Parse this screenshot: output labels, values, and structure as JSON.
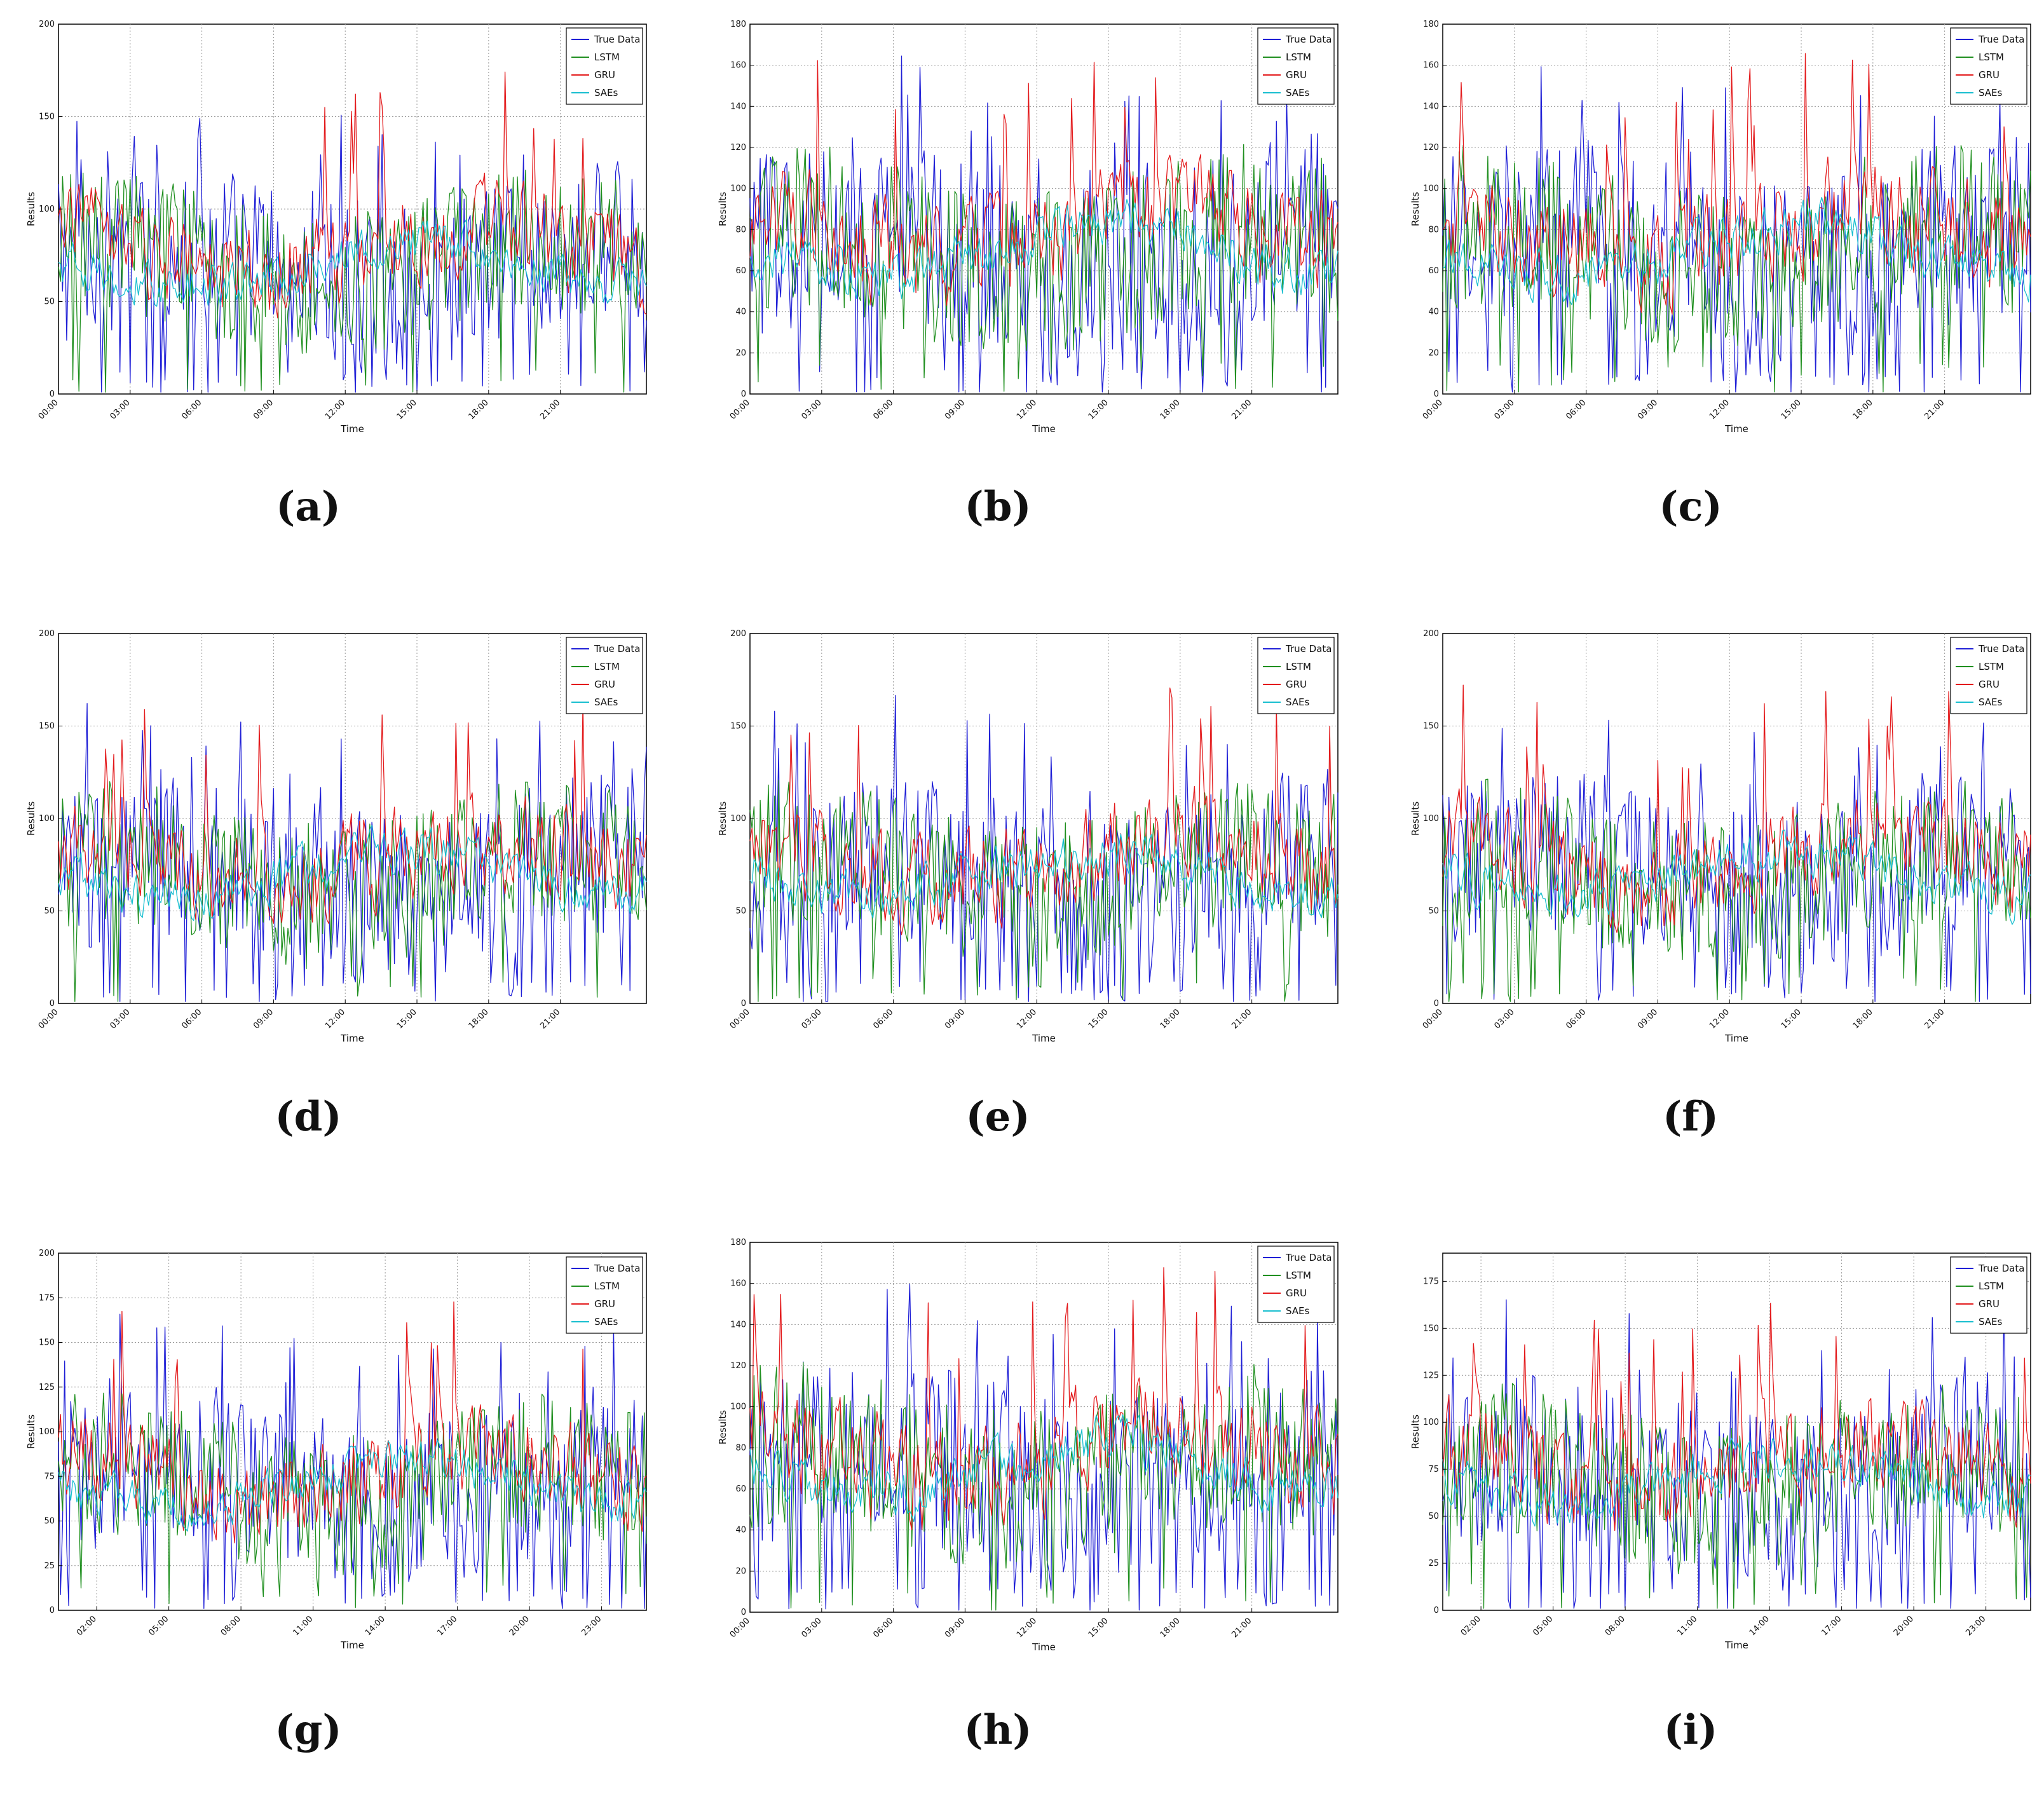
{
  "chart_data": [
    {
      "id": "a",
      "caption": "(a)",
      "type": "line",
      "xlabel": "Time",
      "ylabel": "Results",
      "ylim": [
        0,
        200
      ],
      "yticks": [
        0,
        50,
        100,
        150,
        200
      ],
      "xticks": [
        "00:00",
        "03:00",
        "06:00",
        "09:00",
        "12:00",
        "15:00",
        "18:00",
        "21:00"
      ],
      "grid": true,
      "legend": "top-right",
      "series": [
        {
          "name": "True Data",
          "color": "#1f1fd6"
        },
        {
          "name": "LSTM",
          "color": "#1f8f1f"
        },
        {
          "name": "GRU",
          "color": "#e31a1c"
        },
        {
          "name": "SAEs",
          "color": "#17becf"
        }
      ]
    },
    {
      "id": "b",
      "caption": "(b)",
      "type": "line",
      "xlabel": "Time",
      "ylabel": "Results",
      "ylim": [
        0,
        180
      ],
      "yticks": [
        0,
        20,
        40,
        60,
        80,
        100,
        120,
        140,
        160,
        180
      ],
      "xticks": [
        "00:00",
        "03:00",
        "06:00",
        "09:00",
        "12:00",
        "15:00",
        "18:00",
        "21:00"
      ],
      "grid": true,
      "legend": "top-right",
      "series": [
        {
          "name": "True Data",
          "color": "#1f1fd6"
        },
        {
          "name": "LSTM",
          "color": "#1f8f1f"
        },
        {
          "name": "GRU",
          "color": "#e31a1c"
        },
        {
          "name": "SAEs",
          "color": "#17becf"
        }
      ]
    },
    {
      "id": "c",
      "caption": "(c)",
      "type": "line",
      "xlabel": "Time",
      "ylabel": "Results",
      "ylim": [
        0,
        180
      ],
      "yticks": [
        0,
        20,
        40,
        60,
        80,
        100,
        120,
        140,
        160,
        180
      ],
      "xticks": [
        "00:00",
        "03:00",
        "06:00",
        "09:00",
        "12:00",
        "15:00",
        "18:00",
        "21:00"
      ],
      "grid": true,
      "legend": "top-right",
      "series": [
        {
          "name": "True Data",
          "color": "#1f1fd6"
        },
        {
          "name": "LSTM",
          "color": "#1f8f1f"
        },
        {
          "name": "GRU",
          "color": "#e31a1c"
        },
        {
          "name": "SAEs",
          "color": "#17becf"
        }
      ]
    },
    {
      "id": "d",
      "caption": "(d)",
      "type": "line",
      "xlabel": "Time",
      "ylabel": "Results",
      "ylim": [
        0,
        200
      ],
      "yticks": [
        0,
        50,
        100,
        150,
        200
      ],
      "xticks": [
        "00:00",
        "03:00",
        "06:00",
        "09:00",
        "12:00",
        "15:00",
        "18:00",
        "21:00"
      ],
      "grid": true,
      "legend": "top-right",
      "series": [
        {
          "name": "True Data",
          "color": "#1f1fd6"
        },
        {
          "name": "LSTM",
          "color": "#1f8f1f"
        },
        {
          "name": "GRU",
          "color": "#e31a1c"
        },
        {
          "name": "SAEs",
          "color": "#17becf"
        }
      ]
    },
    {
      "id": "e",
      "caption": "(e)",
      "type": "line",
      "xlabel": "Time",
      "ylabel": "Results",
      "ylim": [
        0,
        200
      ],
      "yticks": [
        0,
        50,
        100,
        150,
        200
      ],
      "xticks": [
        "00:00",
        "03:00",
        "06:00",
        "09:00",
        "12:00",
        "15:00",
        "18:00",
        "21:00"
      ],
      "grid": true,
      "legend": "top-right",
      "series": [
        {
          "name": "True Data",
          "color": "#1f1fd6"
        },
        {
          "name": "LSTM",
          "color": "#1f8f1f"
        },
        {
          "name": "GRU",
          "color": "#e31a1c"
        },
        {
          "name": "SAEs",
          "color": "#17becf"
        }
      ]
    },
    {
      "id": "f",
      "caption": "(f)",
      "type": "line",
      "xlabel": "Time",
      "ylabel": "Results",
      "ylim": [
        0,
        200
      ],
      "yticks": [
        0,
        50,
        100,
        150,
        200
      ],
      "xticks": [
        "00:00",
        "03:00",
        "06:00",
        "09:00",
        "12:00",
        "15:00",
        "18:00",
        "21:00"
      ],
      "grid": true,
      "legend": "top-right",
      "series": [
        {
          "name": "True Data",
          "color": "#1f1fd6"
        },
        {
          "name": "LSTM",
          "color": "#1f8f1f"
        },
        {
          "name": "GRU",
          "color": "#e31a1c"
        },
        {
          "name": "SAEs",
          "color": "#17becf"
        }
      ]
    },
    {
      "id": "g",
      "caption": "(g)",
      "type": "line",
      "xlabel": "Time",
      "ylabel": "Results",
      "ylim": [
        0,
        200
      ],
      "yticks": [
        0,
        25,
        50,
        75,
        100,
        125,
        150,
        175,
        200
      ],
      "xticks": [
        "02:00",
        "05:00",
        "08:00",
        "11:00",
        "14:00",
        "17:00",
        "20:00",
        "23:00"
      ],
      "grid": true,
      "legend": "top-right",
      "series": [
        {
          "name": "True Data",
          "color": "#1f1fd6"
        },
        {
          "name": "LSTM",
          "color": "#1f8f1f"
        },
        {
          "name": "GRU",
          "color": "#e31a1c"
        },
        {
          "name": "SAEs",
          "color": "#17becf"
        }
      ]
    },
    {
      "id": "h",
      "caption": "(h)",
      "type": "line",
      "xlabel": "Time",
      "ylabel": "Results",
      "ylim": [
        0,
        180
      ],
      "yticks": [
        0,
        20,
        40,
        60,
        80,
        100,
        120,
        140,
        160,
        180
      ],
      "xticks": [
        "00:00",
        "03:00",
        "06:00",
        "09:00",
        "12:00",
        "15:00",
        "18:00",
        "21:00"
      ],
      "grid": true,
      "legend": "top-right",
      "series": [
        {
          "name": "True Data",
          "color": "#1f1fd6"
        },
        {
          "name": "LSTM",
          "color": "#1f8f1f"
        },
        {
          "name": "GRU",
          "color": "#e31a1c"
        },
        {
          "name": "SAEs",
          "color": "#17becf"
        }
      ]
    },
    {
      "id": "i",
      "caption": "(i)",
      "type": "line",
      "xlabel": "Time",
      "ylabel": "Results",
      "ylim": [
        0,
        190
      ],
      "yticks": [
        0,
        25,
        50,
        75,
        100,
        125,
        150,
        175
      ],
      "xticks": [
        "02:00",
        "05:00",
        "08:00",
        "11:00",
        "14:00",
        "17:00",
        "20:00",
        "23:00"
      ],
      "grid": true,
      "legend": "top-right",
      "series": [
        {
          "name": "True Data",
          "color": "#1f1fd6"
        },
        {
          "name": "LSTM",
          "color": "#1f8f1f"
        },
        {
          "name": "GRU",
          "color": "#e31a1c"
        },
        {
          "name": "SAEs",
          "color": "#17becf"
        }
      ]
    }
  ]
}
